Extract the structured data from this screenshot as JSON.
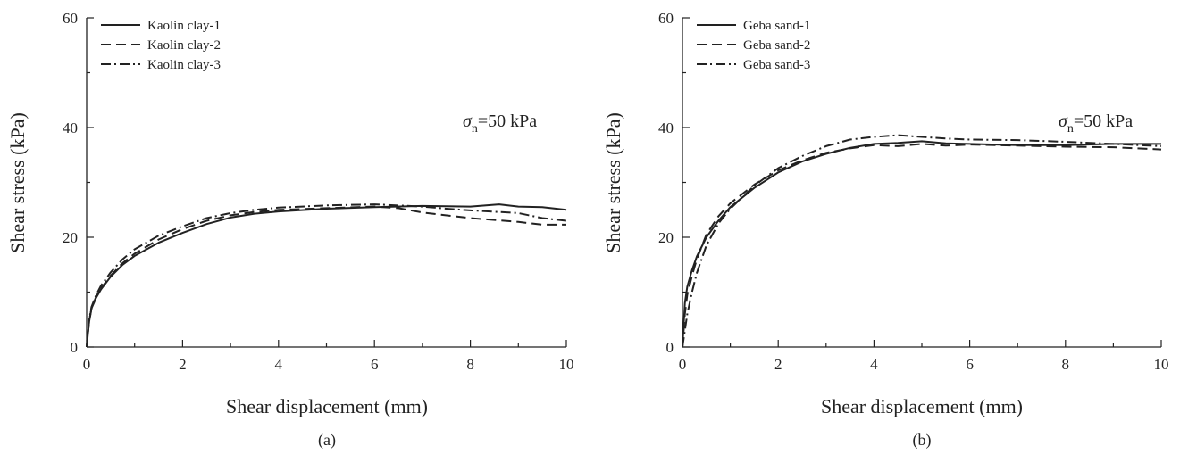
{
  "chart_data": [
    {
      "type": "line",
      "panel_label": "(a)",
      "xlabel": "Shear displacement (mm)",
      "ylabel": "Shear stress (kPa)",
      "xlim": [
        0,
        10
      ],
      "ylim": [
        0,
        60
      ],
      "xticks": [
        0,
        2,
        4,
        6,
        8,
        10
      ],
      "yticks": [
        0,
        20,
        40,
        60
      ],
      "annotation": {
        "symbol": "σ",
        "subscript": "n",
        "text": "=50 kPa"
      },
      "legend_position": "top-left",
      "series": [
        {
          "name": "Kaolin clay-1",
          "style": "solid",
          "x": [
            0,
            0.05,
            0.1,
            0.2,
            0.3,
            0.5,
            0.75,
            1.0,
            1.5,
            2.0,
            2.5,
            3.0,
            3.5,
            4.0,
            5.0,
            6.0,
            7.0,
            8.0,
            8.6,
            9.0,
            9.5,
            10.0
          ],
          "y": [
            0,
            4.5,
            7,
            9,
            10.5,
            12.8,
            15,
            16.6,
            19,
            20.8,
            22.4,
            23.6,
            24.3,
            24.7,
            25.2,
            25.5,
            25.7,
            25.6,
            26,
            25.6,
            25.5,
            25
          ]
        },
        {
          "name": "Kaolin clay-2",
          "style": "dashed",
          "x": [
            0,
            0.05,
            0.1,
            0.2,
            0.3,
            0.5,
            0.75,
            1.0,
            1.5,
            2.0,
            2.5,
            3.0,
            3.5,
            4.0,
            5.0,
            6.0,
            6.5,
            7.0,
            8.0,
            9.0,
            9.5,
            10.0
          ],
          "y": [
            0,
            4.5,
            7,
            9.2,
            10.7,
            13,
            15.3,
            17,
            19.6,
            21.5,
            23,
            24,
            24.6,
            25,
            25.3,
            25.6,
            25.3,
            24.5,
            23.5,
            22.8,
            22.3,
            22.3
          ]
        },
        {
          "name": "Kaolin clay-3",
          "style": "dashdot",
          "x": [
            0,
            0.05,
            0.1,
            0.2,
            0.3,
            0.5,
            0.75,
            1.0,
            1.5,
            2.0,
            2.5,
            3.0,
            3.5,
            4.0,
            5.0,
            6.0,
            7.0,
            7.5,
            8.0,
            9.0,
            9.5,
            10.0
          ],
          "y": [
            0,
            4.8,
            7.3,
            9.5,
            11.2,
            13.6,
            16,
            17.8,
            20.3,
            22,
            23.5,
            24.4,
            25,
            25.4,
            25.8,
            26,
            25.6,
            25.2,
            24.9,
            24.4,
            23.5,
            23
          ]
        }
      ]
    },
    {
      "type": "line",
      "panel_label": "(b)",
      "xlabel": "Shear displacement (mm)",
      "ylabel": "Shear stress (kPa)",
      "xlim": [
        0,
        10
      ],
      "ylim": [
        0,
        60
      ],
      "xticks": [
        0,
        2,
        4,
        6,
        8,
        10
      ],
      "yticks": [
        0,
        20,
        40,
        60
      ],
      "annotation": {
        "symbol": "σ",
        "subscript": "n",
        "text": "=50 kPa"
      },
      "legend_position": "top-left",
      "series": [
        {
          "name": "Geba sand-1",
          "style": "solid",
          "x": [
            0,
            0.05,
            0.1,
            0.2,
            0.3,
            0.5,
            0.75,
            1.0,
            1.5,
            2.0,
            2.5,
            3.0,
            3.5,
            4.0,
            4.5,
            5.0,
            5.5,
            6.0,
            7.0,
            8.0,
            9.0,
            10.0
          ],
          "y": [
            0,
            8,
            11,
            14,
            16.5,
            20,
            23,
            25.5,
            29,
            31.8,
            33.8,
            35.2,
            36.3,
            37,
            37.2,
            37.5,
            37.1,
            37,
            36.8,
            36.8,
            37,
            37
          ]
        },
        {
          "name": "Geba sand-2",
          "style": "dashed",
          "x": [
            0,
            0.05,
            0.1,
            0.2,
            0.3,
            0.5,
            0.75,
            1.0,
            1.5,
            2.0,
            2.5,
            3.0,
            3.5,
            4.0,
            4.5,
            5.0,
            5.5,
            6.0,
            7.0,
            8.0,
            9.0,
            10.0
          ],
          "y": [
            0,
            6,
            9.5,
            13,
            16,
            20.5,
            23.8,
            26.2,
            29.6,
            32.2,
            34,
            35.4,
            36.2,
            36.8,
            36.6,
            37,
            36.7,
            36.9,
            36.7,
            36.5,
            36.4,
            36
          ]
        },
        {
          "name": "Geba sand-3",
          "style": "dashdot",
          "x": [
            0,
            0.05,
            0.1,
            0.2,
            0.3,
            0.5,
            0.75,
            1.0,
            1.5,
            2.0,
            2.5,
            3.0,
            3.5,
            4.0,
            4.5,
            5.0,
            5.5,
            6.0,
            7.0,
            8.0,
            9.0,
            10.0
          ],
          "y": [
            0,
            3,
            6,
            10,
            13.5,
            18.5,
            22.5,
            25.2,
            29.4,
            32.6,
            34.8,
            36.6,
            37.8,
            38.3,
            38.6,
            38.3,
            38,
            37.8,
            37.7,
            37.4,
            37,
            36.6
          ]
        }
      ]
    }
  ]
}
